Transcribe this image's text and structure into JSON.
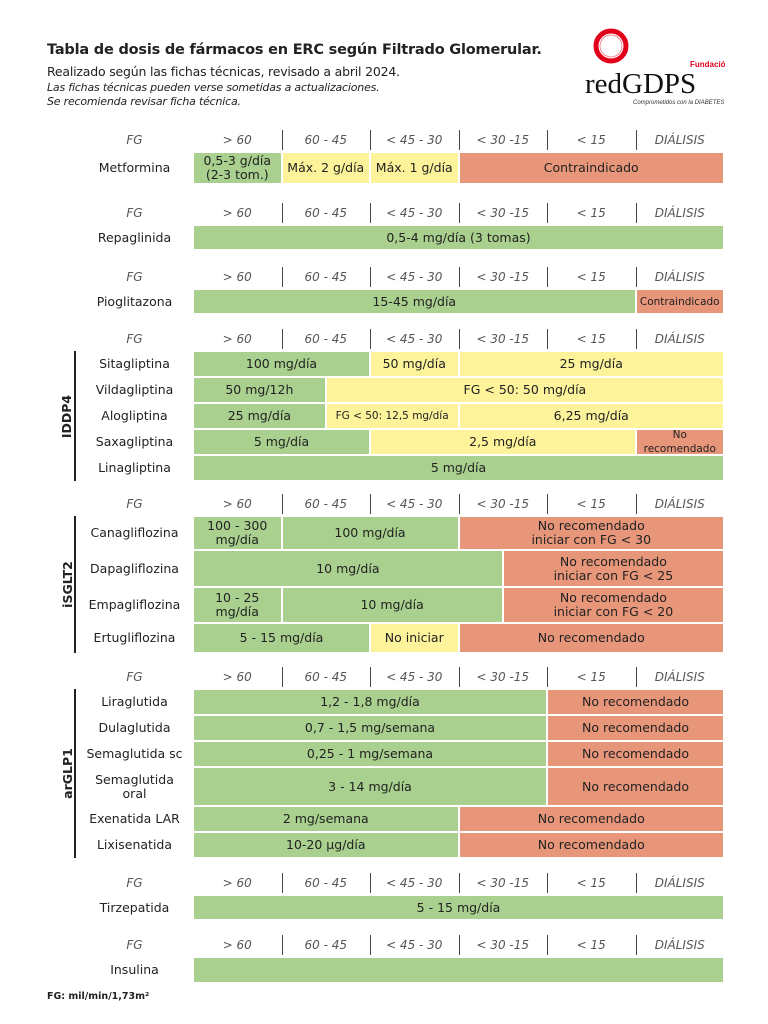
{
  "header": {
    "title": "Tabla de dosis de fármacos en ERC según Filtrado Glomerular.",
    "subtitle": "Realizado según las fichas técnicas, revisado a abril 2024.",
    "note1": "Las fichas técnicas pueden verse sometidas a actualizaciones.",
    "note2": "Se recomienda revisar ficha técnica."
  },
  "logo": {
    "fundacion": "Fundación",
    "name": "redGDPS",
    "tagline": "Comprometidos con la DIABETES",
    "color": "#e2001a"
  },
  "colors": {
    "green": "#a9d08e",
    "yellow": "#fdf39b",
    "red": "#e8967a"
  },
  "column_headers": [
    "FG",
    "> 60",
    "60 - 45",
    "< 45 - 30",
    "< 30 -15",
    "< 15",
    "DIÁLISIS"
  ],
  "sections": [
    {
      "group": "",
      "drugs": [
        {
          "name": "Metformina",
          "cells": [
            {
              "text": "0,5-3 g/día\n(2-3 tom.)",
              "color": "green",
              "span": 2
            },
            {
              "text": "Máx. 2 g/día",
              "color": "yellow",
              "span": 2
            },
            {
              "text": "Máx. 1 g/día",
              "color": "yellow",
              "span": 2
            },
            {
              "text": "Contraindicado",
              "color": "red",
              "span": 6
            }
          ]
        }
      ]
    },
    {
      "group": "",
      "drugs": [
        {
          "name": "Repaglinida",
          "cells": [
            {
              "text": "0,5-4 mg/día (3 tomas)",
              "color": "green",
              "span": 12
            }
          ]
        }
      ]
    },
    {
      "group": "",
      "drugs": [
        {
          "name": "Pioglitazona",
          "cells": [
            {
              "text": "15-45 mg/día",
              "color": "green",
              "span": 10
            },
            {
              "text": "Contraindicado",
              "color": "red",
              "span": 2,
              "small": true
            }
          ]
        }
      ]
    },
    {
      "group": "IDDP4",
      "drugs": [
        {
          "name": "Sitagliptina",
          "cells": [
            {
              "text": "100 mg/día",
              "color": "green",
              "span": 4
            },
            {
              "text": "50 mg/día",
              "color": "yellow",
              "span": 2
            },
            {
              "text": "25 mg/día",
              "color": "yellow",
              "span": 6
            }
          ]
        },
        {
          "name": "Vildagliptina",
          "cells": [
            {
              "text": "50 mg/12h",
              "color": "green",
              "span": 3
            },
            {
              "text": "FG < 50: 50 mg/día",
              "color": "yellow",
              "span": 9
            }
          ]
        },
        {
          "name": "Alogliptina",
          "cells": [
            {
              "text": "25 mg/día",
              "color": "green",
              "span": 3
            },
            {
              "text": "FG < 50: 12,5 mg/día",
              "color": "yellow",
              "span": 3,
              "small": true
            },
            {
              "text": "6,25 mg/día",
              "color": "yellow",
              "span": 6
            }
          ]
        },
        {
          "name": "Saxagliptina",
          "cells": [
            {
              "text": "5 mg/día",
              "color": "green",
              "span": 4
            },
            {
              "text": "2,5 mg/día",
              "color": "yellow",
              "span": 6
            },
            {
              "text": "No recomendado",
              "color": "red",
              "span": 2,
              "small": true
            }
          ]
        },
        {
          "name": "Linagliptina",
          "cells": [
            {
              "text": "5 mg/día",
              "color": "green",
              "span": 12
            }
          ]
        }
      ]
    },
    {
      "group": "iSGLT2",
      "drugs": [
        {
          "name": "Canagliflozina",
          "cells": [
            {
              "text": "100 - 300\nmg/día",
              "color": "green",
              "span": 2
            },
            {
              "text": "100 mg/día",
              "color": "green",
              "span": 4
            },
            {
              "text": "No recomendado\niniciar con FG < 30",
              "color": "red",
              "span": 6
            }
          ]
        },
        {
          "name": "Dapagliflozina",
          "cells": [
            {
              "text": "10 mg/día",
              "color": "green",
              "span": 7
            },
            {
              "text": "No recomendado\niniciar con FG < 25",
              "color": "red",
              "span": 5
            }
          ]
        },
        {
          "name": "Empagliflozina",
          "cells": [
            {
              "text": "10 - 25\nmg/día",
              "color": "green",
              "span": 2
            },
            {
              "text": "10 mg/día",
              "color": "green",
              "span": 5
            },
            {
              "text": "No recomendado\niniciar con FG < 20",
              "color": "red",
              "span": 5
            }
          ]
        },
        {
          "name": "Ertugliflozina",
          "cells": [
            {
              "text": "5 - 15 mg/día",
              "color": "green",
              "span": 4
            },
            {
              "text": "No iniciar",
              "color": "yellow",
              "span": 2
            },
            {
              "text": "No recomendado",
              "color": "red",
              "span": 6
            }
          ]
        }
      ]
    },
    {
      "group": "arGLP1",
      "drugs": [
        {
          "name": "Liraglutida",
          "cells": [
            {
              "text": "1,2 - 1,8 mg/día",
              "color": "green",
              "span": 8
            },
            {
              "text": "No recomendado",
              "color": "red",
              "span": 4
            }
          ]
        },
        {
          "name": "Dulaglutida",
          "cells": [
            {
              "text": "0,7 - 1,5 mg/semana",
              "color": "green",
              "span": 8
            },
            {
              "text": "No recomendado",
              "color": "red",
              "span": 4
            }
          ]
        },
        {
          "name": "Semaglutida sc",
          "cells": [
            {
              "text": "0,25 - 1 mg/semana",
              "color": "green",
              "span": 8
            },
            {
              "text": "No recomendado",
              "color": "red",
              "span": 4
            }
          ]
        },
        {
          "name": "Semaglutida\noral",
          "cells": [
            {
              "text": "3 - 14 mg/día",
              "color": "green",
              "span": 8
            },
            {
              "text": "No recomendado",
              "color": "red",
              "span": 4
            }
          ]
        },
        {
          "name": "Exenatida LAR",
          "cells": [
            {
              "text": "2 mg/semana",
              "color": "green",
              "span": 6
            },
            {
              "text": "No recomendado",
              "color": "red",
              "span": 6
            }
          ]
        },
        {
          "name": "Lixisenatida",
          "cells": [
            {
              "text": "10-20 µg/día",
              "color": "green",
              "span": 6
            },
            {
              "text": "No recomendado",
              "color": "red",
              "span": 6
            }
          ]
        }
      ]
    },
    {
      "group": "",
      "drugs": [
        {
          "name": "Tirzepatida",
          "cells": [
            {
              "text": "5 - 15 mg/día",
              "color": "green",
              "span": 12
            }
          ]
        }
      ]
    },
    {
      "group": "",
      "drugs": [
        {
          "name": "Insulina",
          "cells": [
            {
              "text": "",
              "color": "green",
              "span": 12
            }
          ]
        }
      ]
    }
  ],
  "footnote": "FG: mil/min/1,73m²"
}
